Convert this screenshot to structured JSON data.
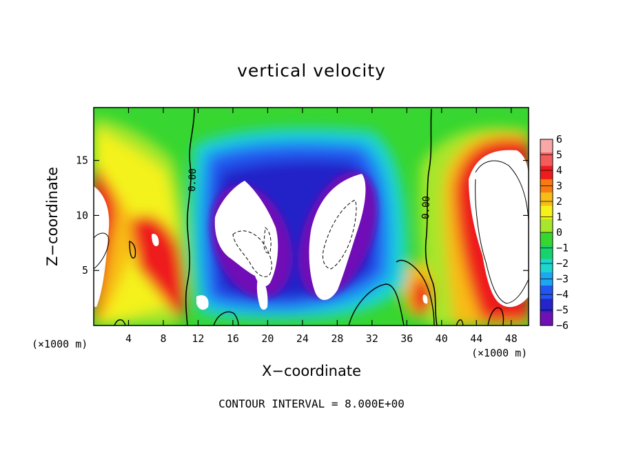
{
  "chart_data": {
    "type": "heatmap",
    "title": "vertical velocity",
    "xlabel": "X−coordinate",
    "ylabel": "Z−coordinate",
    "x_unit": "(×1000 m)",
    "footer": "CONTOUR INTERVAL = 8.000E+00",
    "xlim": [
      0,
      50
    ],
    "ylim": [
      0,
      19.8
    ],
    "x_ticks": [
      4,
      8,
      12,
      16,
      20,
      24,
      28,
      32,
      36,
      40,
      44,
      48
    ],
    "y_ticks": [
      5,
      10,
      15
    ],
    "contour_labels": [
      "0.00",
      "0.00"
    ],
    "colorbar": {
      "levels": [
        6,
        5,
        4,
        3,
        2,
        1,
        0,
        -1,
        -2,
        -3,
        -4,
        -5,
        -6
      ],
      "colors": [
        "#f9a7a7",
        "#f45b5b",
        "#ee1c1c",
        "#f97a10",
        "#f8bc16",
        "#f4f21a",
        "#a7e62b",
        "#37d630",
        "#17d36c",
        "#1cd6cf",
        "#1ea6f2",
        "#2256f0",
        "#2424c8",
        "#7011b6"
      ]
    },
    "features": [
      {
        "name": "updraft-left",
        "x_range": [
          0,
          11
        ],
        "z_range": [
          0,
          15
        ],
        "max_level": 6
      },
      {
        "name": "downdraft-center-left",
        "x_range": [
          11,
          22
        ],
        "z_range": [
          1,
          16
        ],
        "min_level": -6
      },
      {
        "name": "downdraft-center-right",
        "x_range": [
          22,
          34
        ],
        "z_range": [
          1,
          17
        ],
        "min_level": -6
      },
      {
        "name": "updraft-right",
        "x_range": [
          40,
          50
        ],
        "z_range": [
          0,
          18
        ],
        "max_level": 6
      },
      {
        "name": "updraft-spot",
        "x_range": [
          36,
          40
        ],
        "z_range": [
          1,
          6
        ],
        "max_level": 6
      }
    ]
  }
}
